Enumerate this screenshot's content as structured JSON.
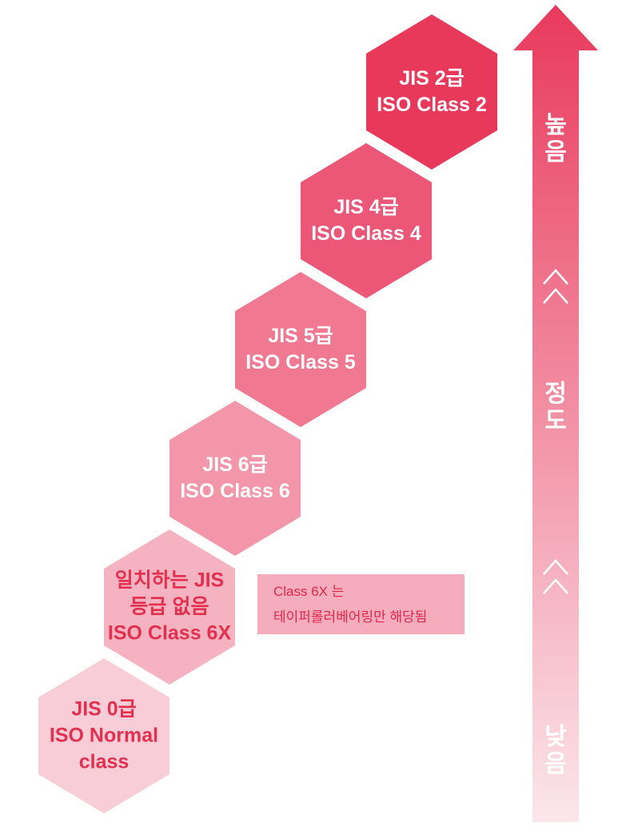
{
  "levels": [
    {
      "line1": "JIS 2급",
      "line2": "ISO Class 2",
      "line3": "",
      "fill": "#e9395b",
      "text_color": "#ffffff"
    },
    {
      "line1": "JIS 4급",
      "line2": "ISO Class 4",
      "line3": "",
      "fill": "#ec5677",
      "text_color": "#ffffff"
    },
    {
      "line1": "JIS 5급",
      "line2": "ISO Class 5",
      "line3": "",
      "fill": "#f07890",
      "text_color": "#ffffff"
    },
    {
      "line1": "JIS 6급",
      "line2": "ISO Class 6",
      "line3": "",
      "fill": "#f396a9",
      "text_color": "#ffffff"
    },
    {
      "line1": "일치하는 JIS",
      "line2": "등급 없음",
      "line3": "ISO Class 6X",
      "fill": "#f5b3c1",
      "text_color": "#e3304f"
    },
    {
      "line1": "JIS 0급",
      "line2": "ISO Normal",
      "line3": "class",
      "fill": "#f8cdd7",
      "text_color": "#e3304f"
    }
  ],
  "note": {
    "line1": "Class 6X 는",
    "line2": "테이퍼롤러베어링만 해당됨"
  },
  "arrow": {
    "top_label": "높음",
    "middle_label": "정도",
    "bottom_label": "낮음",
    "top_color": "#e9395b",
    "bottom_color": "#fbe6ec",
    "icon": "double-chevron-up-icon"
  }
}
